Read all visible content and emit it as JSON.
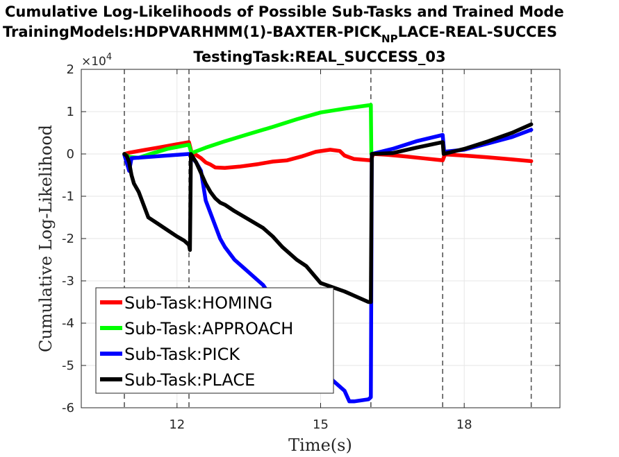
{
  "chart_data": {
    "type": "line",
    "title": {
      "line1": "Cumulative Log-Likelihoods of Possible Sub-Tasks and Trained Mode",
      "line2_prefix": "TrainingModels:HDPVARHMM(1)-BAXTER-PICK",
      "line2_sub": "NP",
      "line2_suffix": "LACE-REAL-SUCCES",
      "line3": "TestingTask:REAL_SUCCESS_03"
    },
    "xlabel": "Time(s)",
    "ylabel": "Cumulative Log-Likelihood",
    "y_exponent_base": "×10",
    "y_exponent_power": "4",
    "xlim": [
      10.0,
      20.0
    ],
    "ylim": [
      -6,
      2
    ],
    "xticks": [
      12,
      15,
      18
    ],
    "xtick_labels": [
      "12",
      "15",
      "18"
    ],
    "yticks": [
      2,
      1,
      0,
      -1,
      -2,
      -3,
      -4,
      -5,
      -6
    ],
    "ytick_labels": [
      "2",
      "1",
      "0",
      "-1",
      "-2",
      "-3",
      "-4",
      "-5",
      "-6"
    ],
    "vlines": [
      10.9,
      12.25,
      16.05,
      17.55,
      19.4
    ],
    "grid": true,
    "legend_position": "lower-left",
    "series": [
      {
        "name": "Sub-Task:HOMING",
        "color": "#ff0000",
        "points": [
          [
            10.9,
            0
          ],
          [
            11.0,
            0.03
          ],
          [
            11.3,
            0.09
          ],
          [
            11.6,
            0.15
          ],
          [
            11.9,
            0.21
          ],
          [
            12.25,
            0.28
          ],
          [
            12.3,
            0.05
          ],
          [
            12.5,
            -0.1
          ],
          [
            12.6,
            -0.2
          ],
          [
            12.7,
            -0.25
          ],
          [
            12.8,
            -0.32
          ],
          [
            13.0,
            -0.33
          ],
          [
            13.3,
            -0.3
          ],
          [
            13.7,
            -0.24
          ],
          [
            14.0,
            -0.18
          ],
          [
            14.3,
            -0.15
          ],
          [
            14.6,
            -0.06
          ],
          [
            14.9,
            0.05
          ],
          [
            15.2,
            0.1
          ],
          [
            15.4,
            0.07
          ],
          [
            15.5,
            -0.04
          ],
          [
            15.7,
            -0.12
          ],
          [
            16.05,
            -0.15
          ],
          [
            16.1,
            0
          ],
          [
            16.4,
            -0.02
          ],
          [
            16.8,
            -0.06
          ],
          [
            17.2,
            -0.11
          ],
          [
            17.55,
            -0.15
          ],
          [
            17.6,
            -0.01
          ],
          [
            18.0,
            -0.04
          ],
          [
            18.5,
            -0.08
          ],
          [
            19.0,
            -0.13
          ],
          [
            19.4,
            -0.17
          ]
        ]
      },
      {
        "name": "Sub-Task:APPROACH",
        "color": "#00ff00",
        "points": [
          [
            10.9,
            0
          ],
          [
            11.0,
            -0.07
          ],
          [
            11.2,
            -0.09
          ],
          [
            11.5,
            0.02
          ],
          [
            11.8,
            0.12
          ],
          [
            12.25,
            0.22
          ],
          [
            12.3,
            0.02
          ],
          [
            12.6,
            0.15
          ],
          [
            13.0,
            0.3
          ],
          [
            13.5,
            0.47
          ],
          [
            14.0,
            0.64
          ],
          [
            14.5,
            0.82
          ],
          [
            15.0,
            0.98
          ],
          [
            15.5,
            1.07
          ],
          [
            16.0,
            1.15
          ],
          [
            16.05,
            1.16
          ],
          [
            16.06,
            0
          ]
        ]
      },
      {
        "name": "Sub-Task:PICK",
        "color": "#0000ff",
        "points": [
          [
            10.9,
            -0.02
          ],
          [
            11.0,
            -0.4
          ],
          [
            11.05,
            -0.1
          ],
          [
            12.25,
            0
          ],
          [
            12.4,
            -0.2
          ],
          [
            12.5,
            -0.4
          ],
          [
            12.6,
            -1.1
          ],
          [
            12.7,
            -1.4
          ],
          [
            12.8,
            -1.7
          ],
          [
            12.9,
            -2.0
          ],
          [
            13.0,
            -2.2
          ],
          [
            13.2,
            -2.5
          ],
          [
            13.4,
            -2.7
          ],
          [
            13.7,
            -3.0
          ],
          [
            13.8,
            -3.1
          ],
          [
            15.0,
            -5.1
          ],
          [
            15.5,
            -5.6
          ],
          [
            15.6,
            -5.85
          ],
          [
            15.7,
            -5.85
          ],
          [
            16.0,
            -5.8
          ],
          [
            16.05,
            -5.75
          ],
          [
            16.07,
            0
          ],
          [
            16.5,
            0.12
          ],
          [
            17.0,
            0.3
          ],
          [
            17.55,
            0.45
          ],
          [
            17.58,
            0.05
          ],
          [
            18.0,
            0.1
          ],
          [
            18.5,
            0.25
          ],
          [
            19.0,
            0.4
          ],
          [
            19.4,
            0.57
          ]
        ]
      },
      {
        "name": "Sub-Task:PLACE",
        "color": "#000000",
        "points": [
          [
            10.9,
            0
          ],
          [
            10.95,
            -0.05
          ],
          [
            11.0,
            -0.2
          ],
          [
            11.05,
            -0.5
          ],
          [
            11.1,
            -0.7
          ],
          [
            11.2,
            -0.9
          ],
          [
            11.3,
            -1.2
          ],
          [
            11.4,
            -1.5
          ],
          [
            11.6,
            -1.65
          ],
          [
            11.8,
            -1.8
          ],
          [
            12.0,
            -1.95
          ],
          [
            12.15,
            -2.05
          ],
          [
            12.25,
            -2.15
          ],
          [
            12.27,
            -2.27
          ],
          [
            12.29,
            0
          ],
          [
            12.4,
            -0.2
          ],
          [
            12.5,
            -0.45
          ],
          [
            12.6,
            -0.7
          ],
          [
            12.7,
            -0.9
          ],
          [
            12.8,
            -1.05
          ],
          [
            12.9,
            -1.15
          ],
          [
            13.0,
            -1.2
          ],
          [
            13.2,
            -1.35
          ],
          [
            13.5,
            -1.55
          ],
          [
            13.8,
            -1.75
          ],
          [
            14.0,
            -1.95
          ],
          [
            14.2,
            -2.2
          ],
          [
            14.5,
            -2.5
          ],
          [
            14.7,
            -2.65
          ],
          [
            15.0,
            -3.05
          ],
          [
            15.5,
            -3.25
          ],
          [
            16.0,
            -3.5
          ],
          [
            16.05,
            -3.5
          ],
          [
            16.07,
            0
          ],
          [
            16.5,
            0.02
          ],
          [
            17.0,
            0.15
          ],
          [
            17.55,
            0.28
          ],
          [
            17.57,
            0
          ],
          [
            18.0,
            0.12
          ],
          [
            18.5,
            0.3
          ],
          [
            19.0,
            0.5
          ],
          [
            19.4,
            0.7
          ]
        ]
      }
    ]
  }
}
